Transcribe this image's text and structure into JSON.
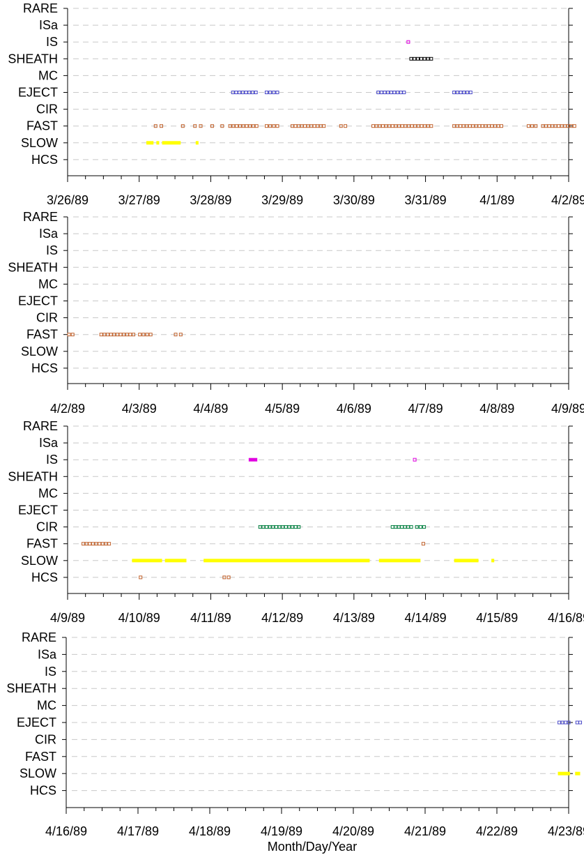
{
  "chart_data": {
    "type": "scatter",
    "x_axis_label": "Month/Day/Year",
    "categories": [
      "RARE",
      "ISa",
      "IS",
      "SHEATH",
      "MC",
      "EJECT",
      "CIR",
      "FAST",
      "SLOW",
      "HCS"
    ],
    "grid": "dashed horizontal lines at each category",
    "colors": {
      "FAST": "#c0602a",
      "SLOW": "#ffff00",
      "EJECT": "#4848c8",
      "IS": "#e000e0",
      "SHEATH": "#000000",
      "CIR": "#008040",
      "HCS": "#c0602a",
      "grid": "#c8c8c8"
    },
    "panels": [
      {
        "xlim": [
          "1989-03-26",
          "1989-04-02"
        ],
        "tick_labels": [
          "3/26/89",
          "3/27/89",
          "3/28/89",
          "3/29/89",
          "3/30/89",
          "3/31/89",
          "4/1/89",
          "4/2/89"
        ],
        "segments": [
          {
            "category": "FAST",
            "start": 1.21,
            "end": 1.23,
            "style": "open"
          },
          {
            "category": "FAST",
            "start": 1.29,
            "end": 1.31,
            "style": "open"
          },
          {
            "category": "FAST",
            "start": 1.59,
            "end": 1.61,
            "style": "open"
          },
          {
            "category": "FAST",
            "start": 1.76,
            "end": 1.78,
            "style": "open"
          },
          {
            "category": "FAST",
            "start": 1.84,
            "end": 1.86,
            "style": "open"
          },
          {
            "category": "FAST",
            "start": 2.0,
            "end": 2.02,
            "style": "open"
          },
          {
            "category": "FAST",
            "start": 2.14,
            "end": 2.2,
            "style": "open"
          },
          {
            "category": "FAST",
            "start": 2.25,
            "end": 2.66,
            "style": "open"
          },
          {
            "category": "FAST",
            "start": 2.76,
            "end": 2.95,
            "style": "open"
          },
          {
            "category": "FAST",
            "start": 3.12,
            "end": 3.6,
            "style": "open"
          },
          {
            "category": "FAST",
            "start": 3.8,
            "end": 3.9,
            "style": "open"
          },
          {
            "category": "FAST",
            "start": 4.25,
            "end": 5.1,
            "style": "open"
          },
          {
            "category": "FAST",
            "start": 5.38,
            "end": 6.08,
            "style": "open"
          },
          {
            "category": "FAST",
            "start": 6.42,
            "end": 6.56,
            "style": "open"
          },
          {
            "category": "FAST",
            "start": 6.62,
            "end": 7.1,
            "style": "open"
          },
          {
            "category": "SLOW",
            "start": 1.1,
            "end": 1.2,
            "style": "filled"
          },
          {
            "category": "SLOW",
            "start": 1.24,
            "end": 1.28,
            "style": "filled"
          },
          {
            "category": "SLOW",
            "start": 1.32,
            "end": 1.58,
            "style": "filled"
          },
          {
            "category": "SLOW",
            "start": 1.79,
            "end": 1.82,
            "style": "filled"
          },
          {
            "category": "EJECT",
            "start": 2.29,
            "end": 2.65,
            "style": "open"
          },
          {
            "category": "EJECT",
            "start": 2.76,
            "end": 2.95,
            "style": "open"
          },
          {
            "category": "EJECT",
            "start": 4.32,
            "end": 4.72,
            "style": "open"
          },
          {
            "category": "EJECT",
            "start": 5.38,
            "end": 5.65,
            "style": "open"
          },
          {
            "category": "IS",
            "start": 4.74,
            "end": 4.76,
            "style": "open"
          },
          {
            "category": "SHEATH",
            "start": 4.78,
            "end": 5.1,
            "style": "open"
          }
        ]
      },
      {
        "xlim": [
          "1989-04-02",
          "1989-04-09"
        ],
        "tick_labels": [
          "4/2/89",
          "4/3/89",
          "4/4/89",
          "4/5/89",
          "4/6/89",
          "4/7/89",
          "4/8/89",
          "4/9/89"
        ],
        "segments": [
          {
            "category": "FAST",
            "start": 0.0,
            "end": 0.09,
            "style": "open"
          },
          {
            "category": "FAST",
            "start": 0.45,
            "end": 0.94,
            "style": "open"
          },
          {
            "category": "FAST",
            "start": 0.99,
            "end": 1.18,
            "style": "open"
          },
          {
            "category": "FAST",
            "start": 1.49,
            "end": 1.6,
            "style": "open"
          }
        ]
      },
      {
        "xlim": [
          "1989-04-09",
          "1989-04-16"
        ],
        "tick_labels": [
          "4/9/89",
          "4/10/89",
          "4/11/89",
          "4/12/89",
          "4/13/89",
          "4/14/89",
          "4/15/89",
          "4/16/89"
        ],
        "segments": [
          {
            "category": "FAST",
            "start": 0.2,
            "end": 0.6,
            "style": "open"
          },
          {
            "category": "FAST",
            "start": 4.95,
            "end": 5.01,
            "style": "open"
          },
          {
            "category": "SLOW",
            "start": 0.9,
            "end": 1.32,
            "style": "filled"
          },
          {
            "category": "SLOW",
            "start": 1.36,
            "end": 1.66,
            "style": "filled"
          },
          {
            "category": "SLOW",
            "start": 1.9,
            "end": 4.22,
            "style": "filled"
          },
          {
            "category": "SLOW",
            "start": 4.35,
            "end": 4.93,
            "style": "filled"
          },
          {
            "category": "SLOW",
            "start": 5.4,
            "end": 5.74,
            "style": "filled"
          },
          {
            "category": "SLOW",
            "start": 5.92,
            "end": 5.96,
            "style": "filled"
          },
          {
            "category": "HCS",
            "start": 1.0,
            "end": 1.02,
            "style": "open"
          },
          {
            "category": "HCS",
            "start": 2.17,
            "end": 2.27,
            "style": "open"
          },
          {
            "category": "IS",
            "start": 2.53,
            "end": 2.65,
            "style": "filled"
          },
          {
            "category": "IS",
            "start": 4.83,
            "end": 4.85,
            "style": "open"
          },
          {
            "category": "CIR",
            "start": 2.67,
            "end": 3.25,
            "style": "open"
          },
          {
            "category": "CIR",
            "start": 4.52,
            "end": 4.82,
            "style": "open"
          },
          {
            "category": "CIR",
            "start": 4.86,
            "end": 5.0,
            "style": "open"
          }
        ]
      },
      {
        "xlim": [
          "1989-04-16",
          "1989-04-23"
        ],
        "tick_labels": [
          "4/16/89",
          "4/17/89",
          "4/18/89",
          "4/19/89",
          "4/20/89",
          "4/21/89",
          "4/22/89",
          "4/23/89"
        ],
        "segments": [
          {
            "category": "EJECT",
            "start": 6.85,
            "end": 7.02,
            "style": "open"
          },
          {
            "category": "EJECT",
            "start": 7.1,
            "end": 7.18,
            "style": "open"
          },
          {
            "category": "SLOW",
            "start": 6.85,
            "end": 7.02,
            "style": "filled"
          },
          {
            "category": "SLOW",
            "start": 7.09,
            "end": 7.16,
            "style": "filled"
          }
        ]
      }
    ]
  }
}
